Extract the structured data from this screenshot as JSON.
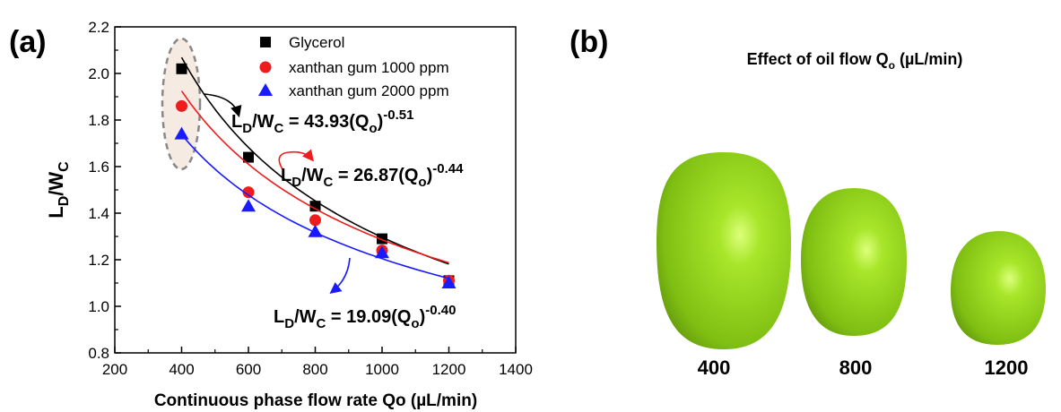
{
  "chart_data": {
    "type": "scatter",
    "panel_label": "(a)",
    "x_label": "Continuous phase flow rate Qo (µL/min)",
    "y_label_parts": [
      "L",
      "D",
      "/W",
      "C"
    ],
    "fit_label_parts": [
      "L",
      "D",
      "/W",
      "C",
      " = ",
      "(Q",
      "o",
      ")"
    ],
    "x": [
      400,
      600,
      800,
      1000,
      1200
    ],
    "xlim": [
      200,
      1400
    ],
    "xticks": [
      200,
      400,
      600,
      800,
      1000,
      1200,
      1400
    ],
    "ylim": [
      0.8,
      2.2
    ],
    "yticks": [
      0.8,
      1.0,
      1.2,
      1.4,
      1.6,
      1.8,
      2.0,
      2.2
    ],
    "legend": "upper center",
    "series": [
      {
        "name": "Glycerol",
        "color": "#000000",
        "marker": "square",
        "values": [
          2.02,
          1.64,
          1.43,
          1.29,
          1.11
        ],
        "fit": {
          "coefficient": 43.93,
          "exponent": {
            "value": -0.51,
            "label": "-0.51"
          }
        }
      },
      {
        "name": "xanthan gum 1000 ppm",
        "color": "#ee1c1c",
        "marker": "circle",
        "values": [
          1.86,
          1.49,
          1.37,
          1.24,
          1.11
        ],
        "fit": {
          "coefficient": 26.87,
          "exponent": {
            "value": -0.44,
            "label": "-0.44"
          }
        }
      },
      {
        "name": "xanthan gum 2000 ppm",
        "color": "#1a1aff",
        "marker": "triangle",
        "values": [
          1.74,
          1.43,
          1.32,
          1.23,
          1.1
        ],
        "fit": {
          "coefficient": 19.09,
          "exponent": {
            "value": -0.4,
            "label": "-0.40"
          }
        }
      }
    ]
  },
  "panel_b": {
    "panel_label": "(b)",
    "title_parts": [
      "Effect of oil flow Q",
      "o",
      " (µL/min)"
    ],
    "droplet_labels": [
      "400",
      "800",
      "1200"
    ]
  }
}
